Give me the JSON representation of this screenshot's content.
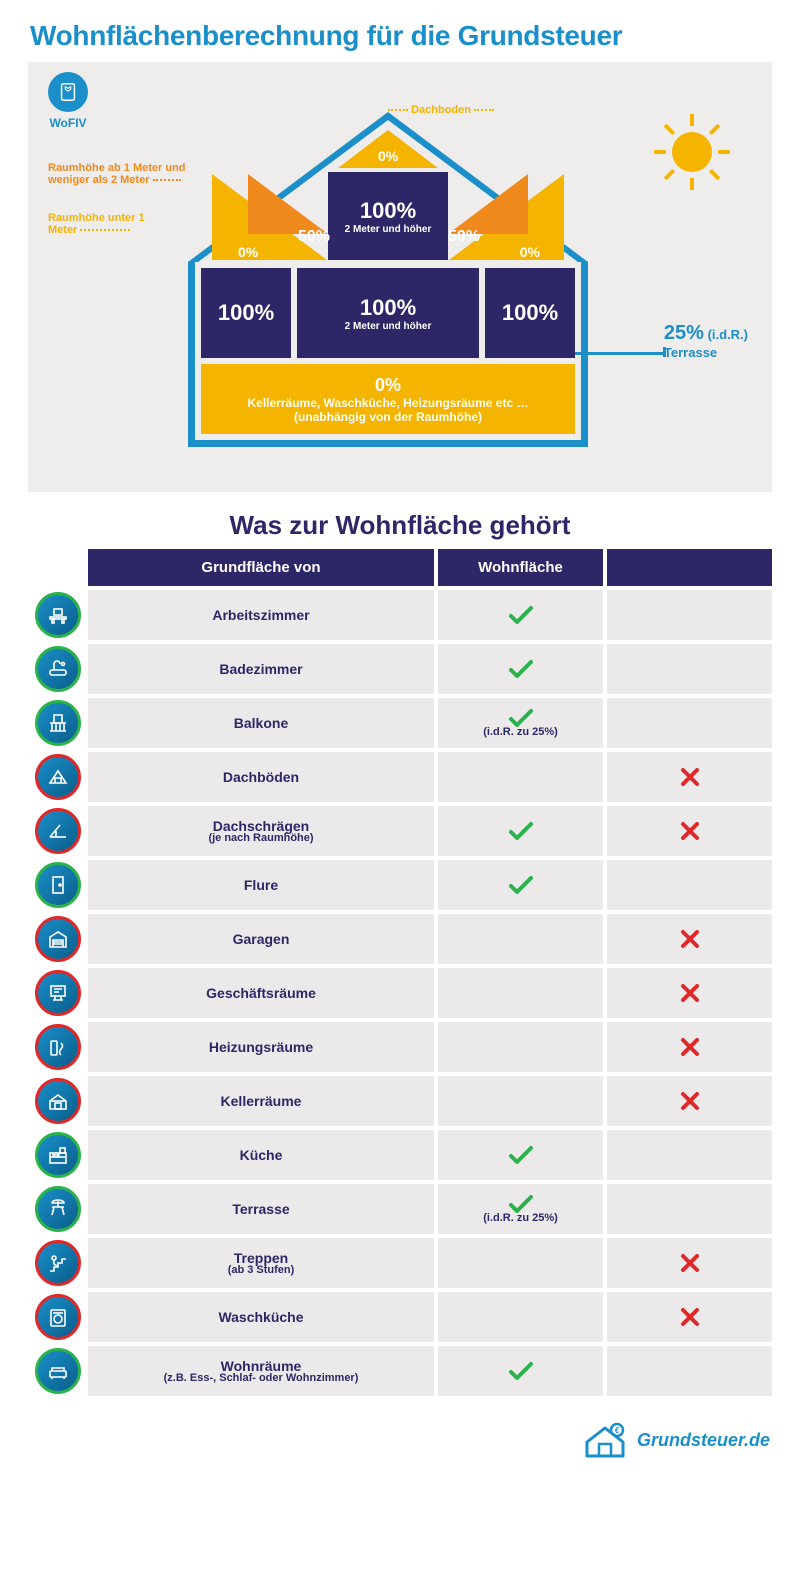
{
  "colors": {
    "blue": "#1a8fc9",
    "navy": "#2e2767",
    "orange": "#f18a1c",
    "yellow": "#f5b400",
    "green": "#2bb24a",
    "red": "#e02828",
    "panel": "#efecec",
    "rowbg": "#ece9eb"
  },
  "title": "Wohnflächenberechnung für die Grundsteuer",
  "wofiv": "WoFIV",
  "house": {
    "dachboden_label": "Dachboden",
    "attic_top": "0%",
    "attic_center_pct": "100%",
    "attic_center_sub": "2 Meter und höher",
    "attic_50": "50%",
    "attic_0": "0%",
    "legend_h1": "Raumhöhe ab 1 Meter und weniger als 2 Meter",
    "legend_h2": "Raumhöhe unter 1 Meter",
    "main_left": "100%",
    "main_center_pct": "100%",
    "main_center_sub": "2 Meter und höher",
    "main_right": "100%",
    "cellar_pct": "0%",
    "cellar_line1": "Kellerräume, Waschküche, Heizungsräume etc …",
    "cellar_line2": "(unabhängig von der Raumhöhe)",
    "terrasse_pct": "25%",
    "terrasse_note": "(i.d.R.)",
    "terrasse_label": "Terrasse"
  },
  "subheading": "Was zur Wohnfläche gehört",
  "table": {
    "col1": "Grundfläche von",
    "col2": "Wohnfläche",
    "rows": [
      {
        "icon": "desk",
        "ring": "green",
        "label": "Arbeitszimmer",
        "note": "",
        "yes": true,
        "no": false
      },
      {
        "icon": "bath",
        "ring": "green",
        "label": "Badezimmer",
        "note": "",
        "yes": true,
        "no": false
      },
      {
        "icon": "balcony",
        "ring": "green",
        "label": "Balkone",
        "note": "(i.d.R. zu 25%)",
        "yes": true,
        "no": false
      },
      {
        "icon": "attic",
        "ring": "red",
        "label": "Dachböden",
        "note": "",
        "yes": false,
        "no": true
      },
      {
        "icon": "slope",
        "ring": "mix",
        "label": "Dachschrägen",
        "note": "(je nach Raumhöhe)",
        "yes": true,
        "no": true
      },
      {
        "icon": "hall",
        "ring": "green",
        "label": "Flure",
        "note": "",
        "yes": true,
        "no": false
      },
      {
        "icon": "garage",
        "ring": "red",
        "label": "Garagen",
        "note": "",
        "yes": false,
        "no": true
      },
      {
        "icon": "office",
        "ring": "red",
        "label": "Geschäftsräume",
        "note": "",
        "yes": false,
        "no": true
      },
      {
        "icon": "heating",
        "ring": "red",
        "label": "Heizungsräume",
        "note": "",
        "yes": false,
        "no": true
      },
      {
        "icon": "cellar",
        "ring": "red",
        "label": "Kellerräume",
        "note": "",
        "yes": false,
        "no": true
      },
      {
        "icon": "kitchen",
        "ring": "green",
        "label": "Küche",
        "note": "",
        "yes": true,
        "no": false
      },
      {
        "icon": "terrace",
        "ring": "green",
        "label": "Terrasse",
        "note": "(i.d.R. zu 25%)",
        "yes": true,
        "no": false
      },
      {
        "icon": "stairs",
        "ring": "red",
        "label": "Treppen",
        "note": "(ab 3 Stufen)",
        "yes": false,
        "no": true
      },
      {
        "icon": "laundry",
        "ring": "red",
        "label": "Waschküche",
        "note": "",
        "yes": false,
        "no": true
      },
      {
        "icon": "living",
        "ring": "green",
        "label": "Wohnräume",
        "note": "(z.B. Ess-, Schlaf- oder Wohnzimmer)",
        "yes": true,
        "no": false
      }
    ]
  },
  "footer": "Grundsteuer.de"
}
